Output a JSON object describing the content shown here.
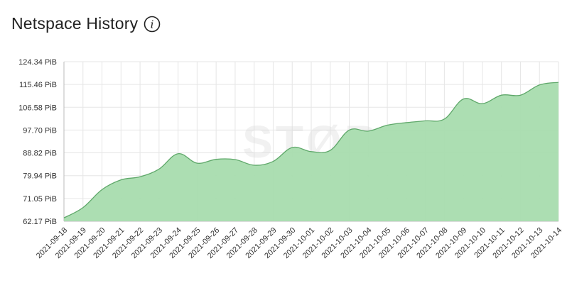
{
  "page": {
    "title": "Netspace History",
    "info_glyph": "i",
    "watermark": "STØR"
  },
  "chart_data": {
    "type": "area",
    "title": "Netspace History",
    "xlabel": "",
    "ylabel": "",
    "grid": true,
    "legend": "none",
    "unit": "PiB",
    "ylim": [
      62.17,
      124.34
    ],
    "yticks": [
      "62.17 PiB",
      "71.05 PiB",
      "79.94 PiB",
      "88.82 PiB",
      "97.70 PiB",
      "106.58 PiB",
      "115.46 PiB",
      "124.34 PiB"
    ],
    "ytick_values": [
      62.17,
      71.05,
      79.94,
      88.82,
      97.7,
      106.58,
      115.46,
      124.34
    ],
    "x": [
      "2021-09-18",
      "2021-09-19",
      "2021-09-20",
      "2021-09-21",
      "2021-09-22",
      "2021-09-23",
      "2021-09-24",
      "2021-09-25",
      "2021-09-26",
      "2021-09-27",
      "2021-09-28",
      "2021-09-29",
      "2021-09-30",
      "2021-10-01",
      "2021-10-02",
      "2021-10-03",
      "2021-10-04",
      "2021-10-05",
      "2021-10-06",
      "2021-10-07",
      "2021-10-08",
      "2021-10-09",
      "2021-10-10",
      "2021-10-11",
      "2021-10-12",
      "2021-10-13",
      "2021-10-14"
    ],
    "values": [
      63.5,
      67.5,
      74.5,
      78.3,
      79.5,
      82.5,
      88.5,
      84.8,
      86.3,
      86.2,
      84.0,
      85.5,
      90.9,
      89.3,
      89.8,
      97.7,
      97.3,
      99.6,
      100.6,
      101.3,
      102.0,
      109.8,
      108.0,
      111.3,
      111.3,
      115.3,
      116.3
    ],
    "colors": {
      "fill": "#a8dcae",
      "line": "#5fa86a",
      "grid": "#e6e6e6"
    }
  }
}
